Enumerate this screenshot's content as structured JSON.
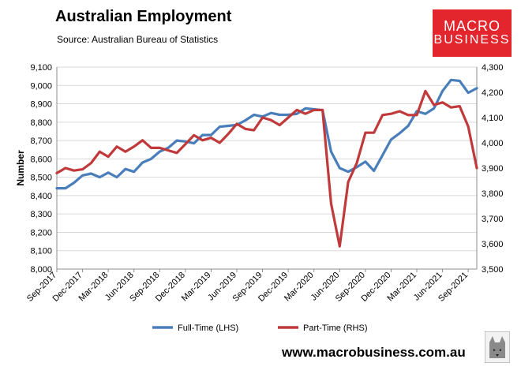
{
  "header": {
    "title": "Australian Employment",
    "subtitle": "Source: Australian Bureau of Statistics"
  },
  "logo": {
    "line1": "MACRO",
    "line2": "BUSINESS",
    "color": "#e3262d"
  },
  "footer": {
    "url": "www.macrobusiness.com.au"
  },
  "colors": {
    "fulltime": "#4a7ebb",
    "parttime": "#c0393b",
    "grid": "#d9d9d9",
    "axis": "#8c8c8c"
  },
  "chart_data": {
    "type": "line",
    "ylabel": "Number",
    "ylim_left": [
      8000,
      9100
    ],
    "ylim_right": [
      3500,
      4300
    ],
    "left_ticks": [
      "8,000",
      "8,100",
      "8,200",
      "8,300",
      "8,400",
      "8,500",
      "8,600",
      "8,700",
      "8,800",
      "8,900",
      "9,000",
      "9,100"
    ],
    "right_ticks": [
      "3,500",
      "3,600",
      "3,700",
      "3,800",
      "3,900",
      "4,000",
      "4,100",
      "4,200",
      "4,300"
    ],
    "x_ticks": [
      "Sep-2017",
      "Dec-2017",
      "Mar-2018",
      "Jun-2018",
      "Sep-2018",
      "Dec-2018",
      "Mar-2019",
      "Jun-2019",
      "Sep-2019",
      "Dec-2019",
      "Mar-2020",
      "Jun-2020",
      "Sep-2020",
      "Dec-2020",
      "Mar-2021",
      "Jun-2021",
      "Sep-2021"
    ],
    "legend_placement": "bottom",
    "grid": "horizontal",
    "series": [
      {
        "name": "Full-Time (LHS)",
        "axis": "left",
        "values": [
          8440,
          8440,
          8470,
          8510,
          8520,
          8500,
          8525,
          8500,
          8545,
          8530,
          8580,
          8600,
          8640,
          8660,
          8700,
          8695,
          8685,
          8730,
          8730,
          8775,
          8780,
          8785,
          8810,
          8840,
          8830,
          8850,
          8840,
          8840,
          8845,
          8875,
          8870,
          8865,
          8640,
          8550,
          8530,
          8555,
          8585,
          8535,
          8620,
          8705,
          8740,
          8780,
          8860,
          8845,
          8875,
          8970,
          9030,
          9025,
          8960,
          8985
        ]
      },
      {
        "name": "Part-Time (RHS)",
        "axis": "right",
        "values": [
          3880,
          3900,
          3890,
          3895,
          3920,
          3965,
          3945,
          3985,
          3965,
          3985,
          4010,
          3980,
          3980,
          3970,
          3960,
          3995,
          4030,
          4010,
          4020,
          4000,
          4035,
          4075,
          4055,
          4050,
          4100,
          4090,
          4070,
          4100,
          4130,
          4115,
          4130,
          4130,
          3760,
          3590,
          3845,
          3920,
          4040,
          4040,
          4110,
          4115,
          4125,
          4110,
          4110,
          4205,
          4150,
          4160,
          4140,
          4145,
          4065,
          3900
        ]
      }
    ]
  }
}
